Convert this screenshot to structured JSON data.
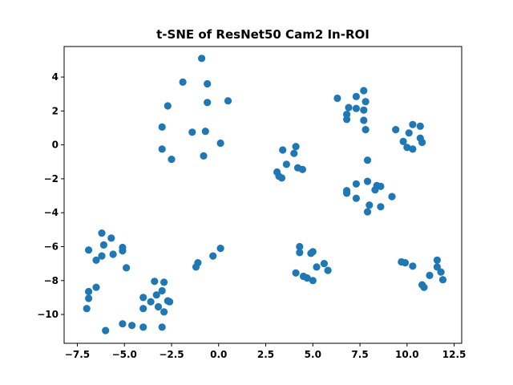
{
  "chart_data": {
    "type": "scatter",
    "title": "t-SNE of ResNet50 Cam2 In-ROI",
    "xlabel": "",
    "ylabel": "",
    "xlim": [
      -8.2,
      12.9
    ],
    "ylim": [
      -11.7,
      5.8
    ],
    "xticks": [
      -7.5,
      -5.0,
      -2.5,
      0.0,
      2.5,
      5.0,
      7.5,
      10.0,
      12.5
    ],
    "xtick_labels": [
      "−7.5",
      "−5.0",
      "−2.5",
      "0.0",
      "2.5",
      "5.0",
      "7.5",
      "10.0",
      "12.5"
    ],
    "yticks": [
      4,
      2,
      0,
      -2,
      -4,
      -6,
      -8,
      -10
    ],
    "ytick_labels": [
      "4",
      "2",
      "0",
      "−2",
      "−4",
      "−6",
      "−8",
      "−10"
    ],
    "grid": false,
    "marker_color": "#1f77b4",
    "series": [
      {
        "points": [
          [
            -0.9,
            5.1
          ],
          [
            -1.9,
            3.7
          ],
          [
            -0.6,
            3.6
          ],
          [
            -2.7,
            2.3
          ],
          [
            -0.6,
            2.5
          ],
          [
            0.5,
            2.6
          ],
          [
            -3.0,
            1.05
          ],
          [
            -1.4,
            0.75
          ],
          [
            -0.7,
            0.8
          ],
          [
            -3.0,
            -0.25
          ],
          [
            -0.8,
            -0.65
          ],
          [
            -2.5,
            -0.85
          ],
          [
            0.1,
            0.1
          ],
          [
            6.3,
            2.75
          ],
          [
            6.9,
            2.2
          ],
          [
            7.3,
            2.85
          ],
          [
            7.7,
            3.2
          ],
          [
            7.3,
            2.15
          ],
          [
            7.8,
            2.55
          ],
          [
            6.8,
            1.8
          ],
          [
            6.8,
            1.5
          ],
          [
            7.7,
            2.05
          ],
          [
            7.7,
            1.45
          ],
          [
            7.8,
            0.9
          ],
          [
            9.4,
            0.9
          ],
          [
            10.3,
            1.2
          ],
          [
            10.7,
            1.1
          ],
          [
            10.1,
            0.7
          ],
          [
            9.8,
            0.2
          ],
          [
            10.0,
            -0.15
          ],
          [
            10.3,
            -0.25
          ],
          [
            10.7,
            0.4
          ],
          [
            10.8,
            0.15
          ],
          [
            3.4,
            -0.3
          ],
          [
            4.1,
            -0.1
          ],
          [
            4.0,
            -0.5
          ],
          [
            3.6,
            -1.15
          ],
          [
            3.1,
            -1.6
          ],
          [
            3.2,
            -1.85
          ],
          [
            3.35,
            -1.95
          ],
          [
            4.2,
            -1.35
          ],
          [
            4.45,
            -1.45
          ],
          [
            7.9,
            -0.9
          ],
          [
            7.3,
            -2.3
          ],
          [
            7.9,
            -2.15
          ],
          [
            8.4,
            -2.4
          ],
          [
            8.6,
            -2.45
          ],
          [
            6.8,
            -2.7
          ],
          [
            6.8,
            -2.85
          ],
          [
            7.3,
            -3.15
          ],
          [
            8.3,
            -2.65
          ],
          [
            9.2,
            -3.05
          ],
          [
            8.0,
            -3.55
          ],
          [
            8.6,
            -3.65
          ],
          [
            7.9,
            -3.95
          ],
          [
            -6.9,
            -6.2
          ],
          [
            -6.2,
            -5.2
          ],
          [
            -5.7,
            -5.5
          ],
          [
            -6.1,
            -5.9
          ],
          [
            -5.1,
            -6.05
          ],
          [
            -5.1,
            -6.25
          ],
          [
            -5.6,
            -6.45
          ],
          [
            -6.2,
            -6.55
          ],
          [
            -6.5,
            -6.8
          ],
          [
            -4.9,
            -7.25
          ],
          [
            -6.5,
            -8.4
          ],
          [
            -6.9,
            -8.65
          ],
          [
            -6.9,
            -9.05
          ],
          [
            -7.0,
            -9.65
          ],
          [
            -6.0,
            -10.95
          ],
          [
            -5.1,
            -10.55
          ],
          [
            -4.6,
            -10.65
          ],
          [
            -4.0,
            -10.75
          ],
          [
            -3.4,
            -8.05
          ],
          [
            -2.9,
            -8.1
          ],
          [
            -3.0,
            -8.6
          ],
          [
            -3.3,
            -8.85
          ],
          [
            -4.0,
            -9.0
          ],
          [
            -3.6,
            -9.25
          ],
          [
            -2.7,
            -9.2
          ],
          [
            -2.6,
            -9.25
          ],
          [
            -4.0,
            -9.65
          ],
          [
            -3.2,
            -9.55
          ],
          [
            -2.9,
            -9.85
          ],
          [
            -3.0,
            -10.75
          ],
          [
            -1.1,
            -6.95
          ],
          [
            -1.2,
            -7.2
          ],
          [
            -0.3,
            -6.55
          ],
          [
            0.1,
            -6.1
          ],
          [
            4.3,
            -6.0
          ],
          [
            4.3,
            -6.35
          ],
          [
            5.0,
            -6.3
          ],
          [
            4.9,
            -6.4
          ],
          [
            5.6,
            -7.0
          ],
          [
            5.2,
            -7.2
          ],
          [
            5.8,
            -7.4
          ],
          [
            4.1,
            -7.55
          ],
          [
            4.5,
            -7.75
          ],
          [
            4.7,
            -7.85
          ],
          [
            5.0,
            -8.0
          ],
          [
            9.7,
            -6.9
          ],
          [
            9.9,
            -6.95
          ],
          [
            10.3,
            -7.15
          ],
          [
            11.6,
            -6.8
          ],
          [
            11.6,
            -7.2
          ],
          [
            11.8,
            -7.5
          ],
          [
            11.2,
            -7.7
          ],
          [
            11.9,
            -7.95
          ],
          [
            10.8,
            -8.25
          ],
          [
            10.9,
            -8.4
          ]
        ]
      }
    ]
  }
}
